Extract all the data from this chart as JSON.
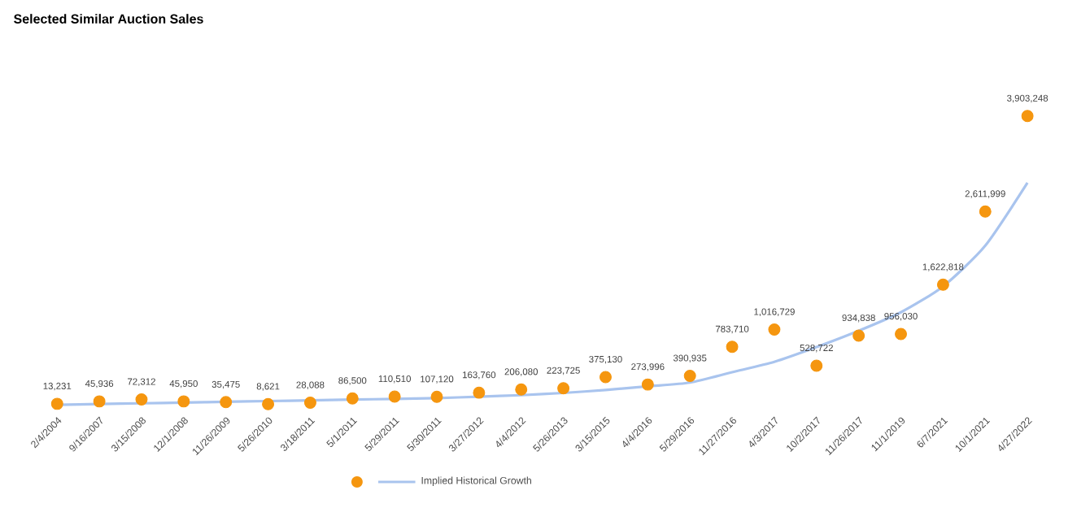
{
  "chart_data": {
    "type": "scatter",
    "title": "Selected Similar Auction Sales",
    "categories": [
      "2/4/2004",
      "9/16/2007",
      "3/15/2008",
      "12/1/2008",
      "11/26/2009",
      "5/26/2010",
      "3/18/2011",
      "5/1/2011",
      "5/29/2011",
      "5/30/2011",
      "3/27/2012",
      "4/4/2012",
      "5/26/2013",
      "3/15/2015",
      "4/4/2016",
      "5/29/2016",
      "11/27/2016",
      "4/3/2017",
      "10/2/2017",
      "11/26/2017",
      "11/1/2019",
      "6/7/2021",
      "10/1/2021",
      "4/27/2022"
    ],
    "series": [
      {
        "color": "#f5960f",
        "marker": "circle",
        "values": [
          13231,
          45936,
          72312,
          45950,
          35475,
          8621,
          28088,
          86500,
          110510,
          107120,
          163760,
          206080,
          223725,
          375130,
          273996,
          390935,
          783710,
          1016729,
          528722,
          934838,
          956030,
          1622818,
          2611999,
          3903248
        ],
        "value_labels": [
          "13,231",
          "45,936",
          "72,312",
          "45,950",
          "35,475",
          "8,621",
          "28,088",
          "86,500",
          "110,510",
          "107,120",
          "163,760",
          "206,080",
          "223,725",
          "375,130",
          "273,996",
          "390,935",
          "783,710",
          "1,016,729",
          "528,722",
          "934,838",
          "956,030",
          "1,622,818",
          "2,611,999",
          "3,903,248"
        ]
      },
      {
        "type": "line",
        "name": "Implied Historical Growth",
        "color": "#a9c4ee",
        "marker": "none",
        "values": [
          0,
          10000,
          20000,
          30000,
          40000,
          50000,
          60000,
          70000,
          80000,
          90000,
          110000,
          130000,
          160000,
          200000,
          250000,
          300000,
          440000,
          580000,
          780000,
          1000000,
          1250000,
          1600000,
          2150000,
          3000000
        ]
      }
    ],
    "legend": "bottom",
    "tick_labels": "x"
  }
}
